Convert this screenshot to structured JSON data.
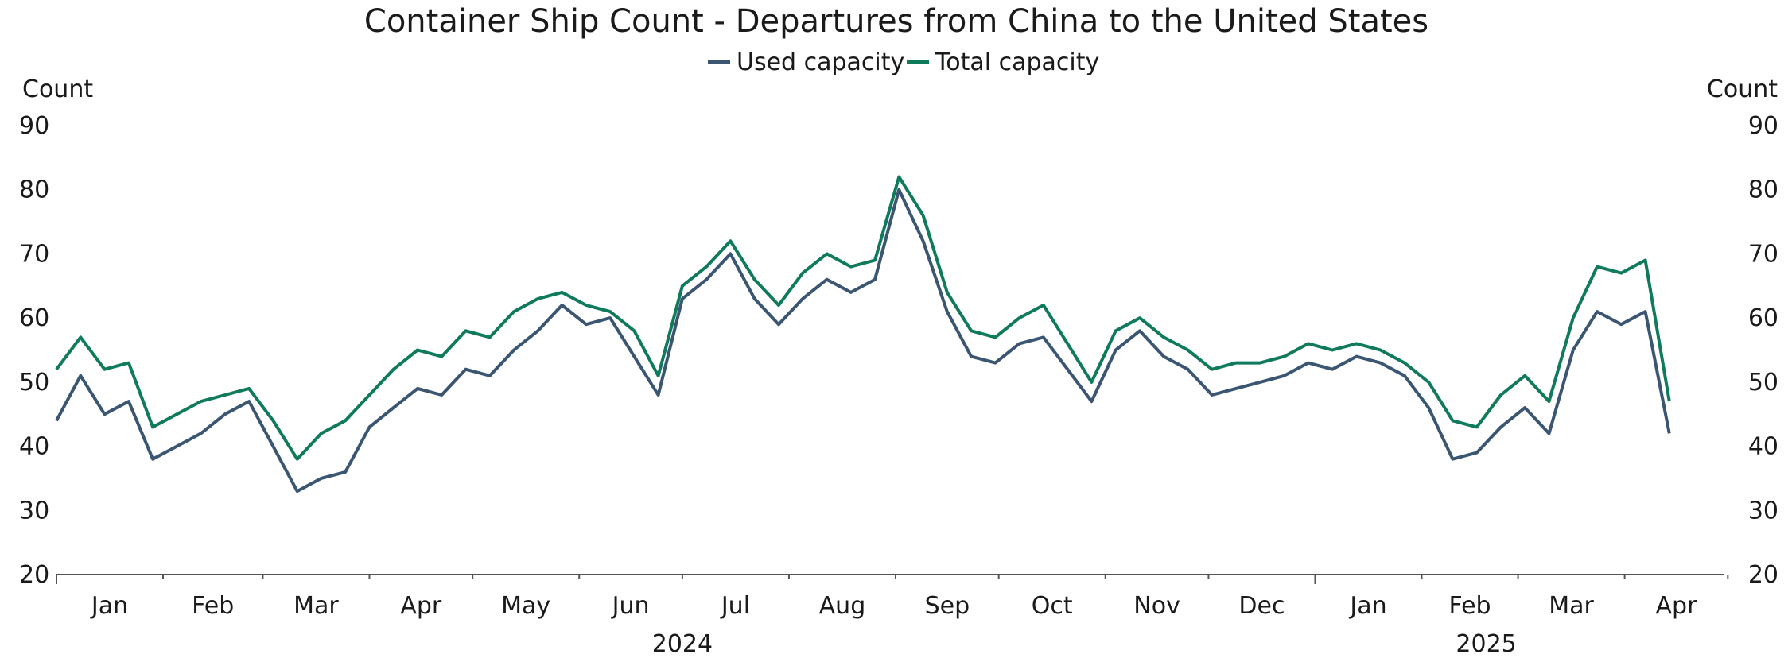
{
  "chart_data": {
    "type": "line",
    "title": "Container Ship Count - Departures from China to the United States",
    "ylabel_left": "Count",
    "ylabel_right": "Count",
    "ylim": [
      20,
      90
    ],
    "yticks": [
      20,
      30,
      40,
      50,
      60,
      70,
      80,
      90
    ],
    "legend_position": "top-center",
    "x_unit": "weekly points, first value ~2024-01-01",
    "month_labels": [
      "Jan",
      "Feb",
      "Mar",
      "Apr",
      "May",
      "Jun",
      "Jul",
      "Aug",
      "Sep",
      "Oct",
      "Nov",
      "Dec",
      "Jan",
      "Feb",
      "Mar",
      "Apr"
    ],
    "year_labels": [
      "2024",
      "2025"
    ],
    "series": [
      {
        "name": "Used capacity",
        "color": "#3b5673",
        "x": [
          "2024-01-01",
          "2024-01-08",
          "2024-01-15",
          "2024-01-22",
          "2024-01-29",
          "2024-02-05",
          "2024-02-12",
          "2024-02-19",
          "2024-02-26",
          "2024-03-04",
          "2024-03-11",
          "2024-03-18",
          "2024-03-25",
          "2024-04-01",
          "2024-04-08",
          "2024-04-15",
          "2024-04-22",
          "2024-04-29",
          "2024-05-06",
          "2024-05-13",
          "2024-05-20",
          "2024-05-27",
          "2024-06-03",
          "2024-06-10",
          "2024-06-17",
          "2024-06-24",
          "2024-07-01",
          "2024-07-08",
          "2024-07-15",
          "2024-07-22",
          "2024-07-29",
          "2024-08-05",
          "2024-08-12",
          "2024-08-19",
          "2024-08-26",
          "2024-09-02",
          "2024-09-09",
          "2024-09-16",
          "2024-09-23",
          "2024-09-30",
          "2024-10-07",
          "2024-10-14",
          "2024-10-21",
          "2024-10-28",
          "2024-11-04",
          "2024-11-11",
          "2024-11-18",
          "2024-11-25",
          "2024-12-02",
          "2024-12-09",
          "2024-12-16",
          "2024-12-23",
          "2024-12-30",
          "2025-01-06",
          "2025-01-13",
          "2025-01-20",
          "2025-01-27",
          "2025-02-03",
          "2025-02-10",
          "2025-02-17",
          "2025-02-24",
          "2025-03-03",
          "2025-03-10",
          "2025-03-17",
          "2025-03-24",
          "2025-03-31",
          "2025-04-07",
          "2025-04-14"
        ],
        "values": [
          44,
          51,
          45,
          47,
          38,
          40,
          42,
          45,
          47,
          40,
          33,
          35,
          36,
          43,
          46,
          49,
          48,
          52,
          51,
          55,
          58,
          62,
          59,
          60,
          54,
          48,
          63,
          66,
          70,
          63,
          59,
          63,
          66,
          64,
          66,
          80,
          72,
          61,
          54,
          53,
          56,
          57,
          52,
          47,
          55,
          58,
          54,
          52,
          48,
          49,
          50,
          51,
          53,
          52,
          54,
          53,
          51,
          46,
          38,
          39,
          43,
          46,
          42,
          55,
          61,
          59,
          61,
          42
        ]
      },
      {
        "name": "Total capacity",
        "color": "#0f7a5c",
        "x": [
          "2024-01-01",
          "2024-01-08",
          "2024-01-15",
          "2024-01-22",
          "2024-01-29",
          "2024-02-05",
          "2024-02-12",
          "2024-02-19",
          "2024-02-26",
          "2024-03-04",
          "2024-03-11",
          "2024-03-18",
          "2024-03-25",
          "2024-04-01",
          "2024-04-08",
          "2024-04-15",
          "2024-04-22",
          "2024-04-29",
          "2024-05-06",
          "2024-05-13",
          "2024-05-20",
          "2024-05-27",
          "2024-06-03",
          "2024-06-10",
          "2024-06-17",
          "2024-06-24",
          "2024-07-01",
          "2024-07-08",
          "2024-07-15",
          "2024-07-22",
          "2024-07-29",
          "2024-08-05",
          "2024-08-12",
          "2024-08-19",
          "2024-08-26",
          "2024-09-02",
          "2024-09-09",
          "2024-09-16",
          "2024-09-23",
          "2024-09-30",
          "2024-10-07",
          "2024-10-14",
          "2024-10-21",
          "2024-10-28",
          "2024-11-04",
          "2024-11-11",
          "2024-11-18",
          "2024-11-25",
          "2024-12-02",
          "2024-12-09",
          "2024-12-16",
          "2024-12-23",
          "2024-12-30",
          "2025-01-06",
          "2025-01-13",
          "2025-01-20",
          "2025-01-27",
          "2025-02-03",
          "2025-02-10",
          "2025-02-17",
          "2025-02-24",
          "2025-03-03",
          "2025-03-10",
          "2025-03-17",
          "2025-03-24",
          "2025-03-31",
          "2025-04-07",
          "2025-04-14"
        ],
        "values": [
          52,
          57,
          52,
          53,
          43,
          45,
          47,
          48,
          49,
          44,
          38,
          42,
          44,
          48,
          52,
          55,
          54,
          58,
          57,
          61,
          63,
          64,
          62,
          61,
          58,
          51,
          65,
          68,
          72,
          66,
          62,
          67,
          70,
          68,
          69,
          82,
          76,
          64,
          58,
          57,
          60,
          62,
          56,
          50,
          58,
          60,
          57,
          55,
          52,
          53,
          53,
          54,
          56,
          55,
          56,
          55,
          53,
          50,
          44,
          43,
          48,
          51,
          47,
          60,
          68,
          67,
          69,
          47
        ]
      }
    ]
  }
}
